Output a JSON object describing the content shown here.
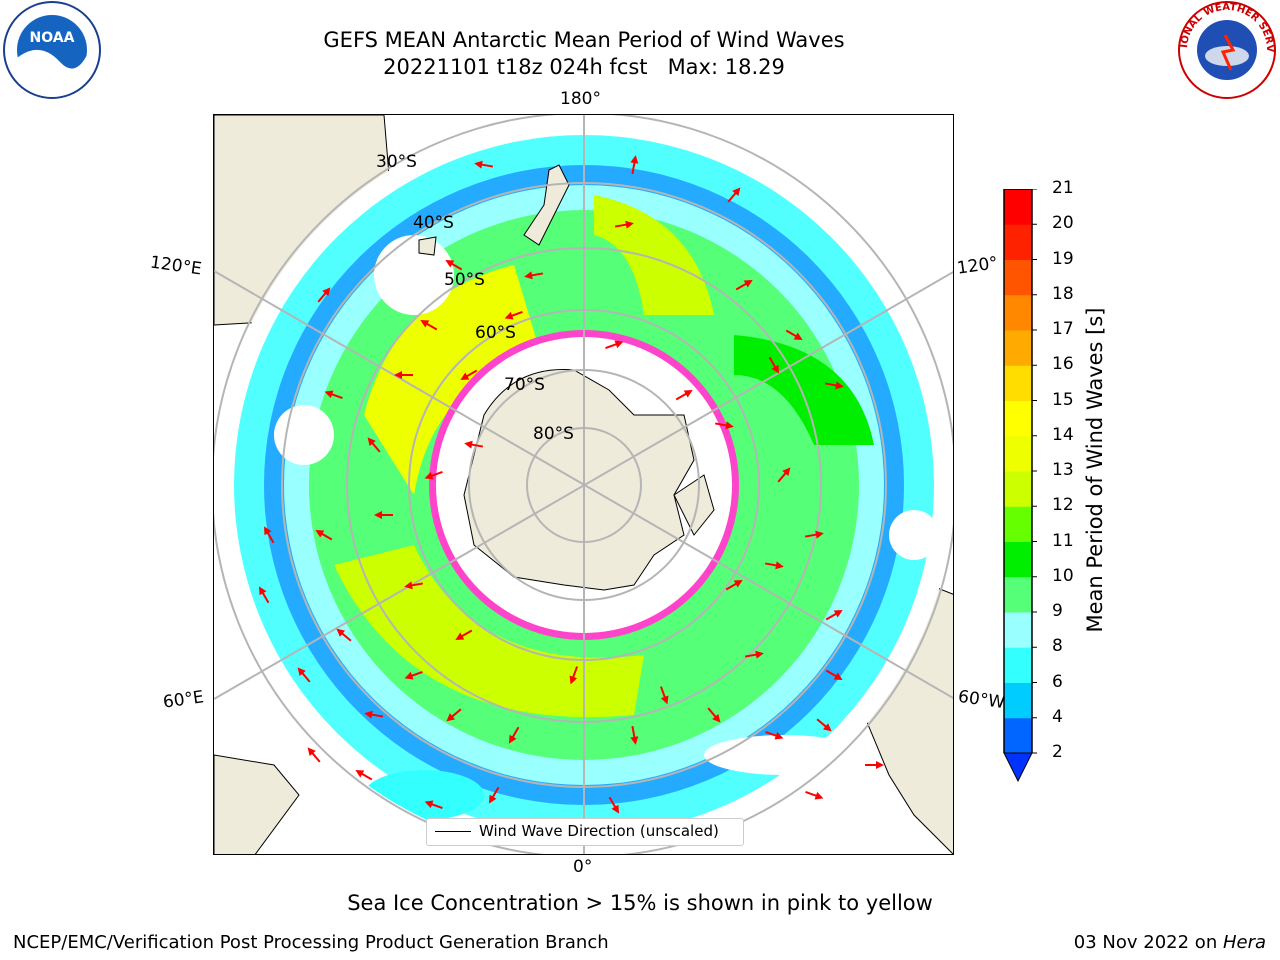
{
  "header": {
    "title_line1": "GEFS MEAN Antarctic Mean Period of Wind Waves",
    "title_line2": "20221101 t18z 024h fcst   Max: 18.29"
  },
  "logos": {
    "left": {
      "name": "noaa-logo",
      "text": "NOAA"
    },
    "right": {
      "name": "nws-logo",
      "text": "NATIONAL WEATHER SERVICE"
    }
  },
  "map": {
    "projection": "south-polar-stereographic",
    "longitude_labels": [
      "180°",
      "120°E",
      "120°",
      "60°E",
      "60°W",
      "0°"
    ],
    "latitude_labels": [
      "30°S",
      "40°S",
      "50°S",
      "60°S",
      "70°S",
      "80°S"
    ],
    "colors": {
      "land": "#efebdb",
      "ocean": "#ffffff",
      "graticule": "#b5b5b5",
      "arrow": "#ff0000",
      "sea_ice": "#ff44cc"
    }
  },
  "legend": {
    "label": "Wind Wave Direction (unscaled)"
  },
  "colorbar": {
    "label": "Mean Period of Wind Waves [s]",
    "ticks": [
      "2",
      "4",
      "6",
      "8",
      "9",
      "10",
      "11",
      "12",
      "13",
      "14",
      "15",
      "16",
      "17",
      "18",
      "19",
      "20",
      "21"
    ],
    "colors": [
      "#0066ff",
      "#00ccff",
      "#33ffff",
      "#99ffff",
      "#55ff77",
      "#00ee00",
      "#66ff00",
      "#ccff00",
      "#eeff00",
      "#ffff00",
      "#ffdd00",
      "#ffaa00",
      "#ff8800",
      "#ff5500",
      "#ff2200",
      "#ff0000"
    ],
    "extend_color": "#0033ff"
  },
  "notes": {
    "sea_ice": "Sea Ice Concentration > 15% is shown in pink to yellow"
  },
  "footer": {
    "left": "NCEP/EMC/Verification Post Processing Product Generation Branch",
    "date": "03 Nov 2022 on ",
    "host": "Hera"
  }
}
